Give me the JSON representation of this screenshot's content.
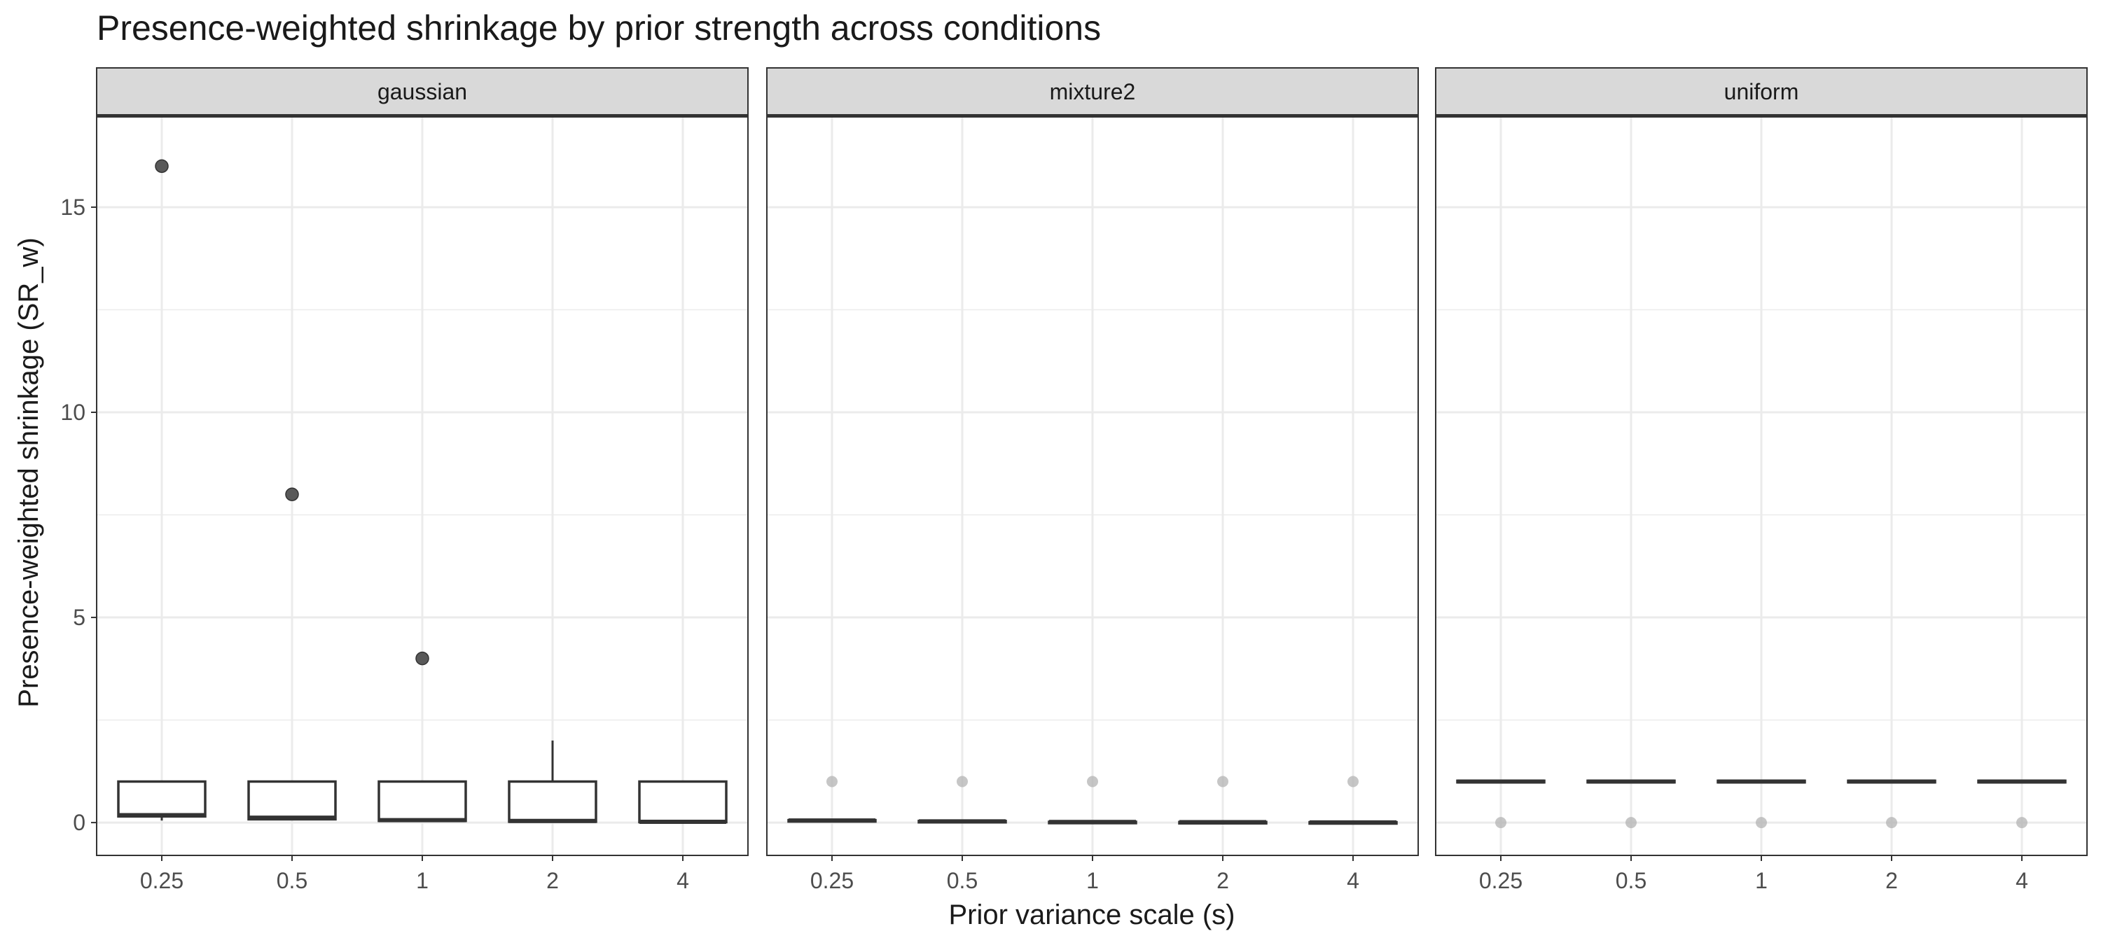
{
  "chart_data": {
    "type": "box",
    "title": "Presence-weighted shrinkage by prior strength across conditions",
    "xlabel": "Prior variance scale (s)",
    "ylabel": "Presence-weighted shrinkage (SR_w)",
    "ylim": [
      -0.8,
      17.2
    ],
    "yticks": [
      0,
      5,
      10,
      15
    ],
    "categories": [
      "0.25",
      "0.5",
      "1",
      "2",
      "4"
    ],
    "grid": true,
    "panels": [
      {
        "name": "gaussian",
        "boxes": [
          {
            "x": "0.25",
            "q1": 0.15,
            "median": 0.18,
            "q3": 1.0,
            "whisker_low": 0.05,
            "whisker_high": 1.0
          },
          {
            "x": "0.5",
            "q1": 0.08,
            "median": 0.12,
            "q3": 1.0,
            "whisker_low": 0.08,
            "whisker_high": 1.0
          },
          {
            "x": "1",
            "q1": 0.04,
            "median": 0.06,
            "q3": 1.0,
            "whisker_low": 0.04,
            "whisker_high": 1.0
          },
          {
            "x": "2",
            "q1": 0.02,
            "median": 0.04,
            "q3": 1.0,
            "whisker_low": 0.02,
            "whisker_high": 2.0
          },
          {
            "x": "4",
            "q1": 0.01,
            "median": 0.02,
            "q3": 1.0,
            "whisker_low": 0.01,
            "whisker_high": 1.0
          }
        ],
        "outliers": [
          {
            "x": "0.25",
            "y": 16
          },
          {
            "x": "0.5",
            "y": 8
          },
          {
            "x": "1",
            "y": 4
          }
        ],
        "jitter_points": []
      },
      {
        "name": "mixture2",
        "boxes": [
          {
            "x": "0.25",
            "q1": 0.04,
            "median": 0.05,
            "q3": 0.06,
            "whisker_low": 0.04,
            "whisker_high": 0.06
          },
          {
            "x": "0.5",
            "q1": 0.02,
            "median": 0.03,
            "q3": 0.04,
            "whisker_low": 0.02,
            "whisker_high": 0.04
          },
          {
            "x": "1",
            "q1": 0.01,
            "median": 0.015,
            "q3": 0.02,
            "whisker_low": 0.01,
            "whisker_high": 0.02
          },
          {
            "x": "2",
            "q1": 0.005,
            "median": 0.01,
            "q3": 0.015,
            "whisker_low": 0.005,
            "whisker_high": 0.015
          },
          {
            "x": "4",
            "q1": 0.0,
            "median": 0.005,
            "q3": 0.01,
            "whisker_low": 0.0,
            "whisker_high": 0.01
          }
        ],
        "outliers": [],
        "jitter_points": [
          {
            "x": "0.25",
            "y": 1
          },
          {
            "x": "0.5",
            "y": 1
          },
          {
            "x": "1",
            "y": 1
          },
          {
            "x": "2",
            "y": 1
          },
          {
            "x": "4",
            "y": 1
          }
        ]
      },
      {
        "name": "uniform",
        "boxes": [
          {
            "x": "0.25",
            "q1": 0.98,
            "median": 1.0,
            "q3": 1.02,
            "whisker_low": 0.98,
            "whisker_high": 1.02
          },
          {
            "x": "0.5",
            "q1": 0.98,
            "median": 1.0,
            "q3": 1.02,
            "whisker_low": 0.98,
            "whisker_high": 1.02
          },
          {
            "x": "1",
            "q1": 0.98,
            "median": 1.0,
            "q3": 1.02,
            "whisker_low": 0.98,
            "whisker_high": 1.02
          },
          {
            "x": "2",
            "q1": 0.98,
            "median": 1.0,
            "q3": 1.02,
            "whisker_low": 0.98,
            "whisker_high": 1.02
          },
          {
            "x": "4",
            "q1": 0.98,
            "median": 1.0,
            "q3": 1.02,
            "whisker_low": 0.98,
            "whisker_high": 1.02
          }
        ],
        "outliers": [],
        "jitter_points": [
          {
            "x": "0.25",
            "y": 0
          },
          {
            "x": "0.5",
            "y": 0
          },
          {
            "x": "1",
            "y": 0
          },
          {
            "x": "2",
            "y": 0
          },
          {
            "x": "4",
            "y": 0
          }
        ]
      }
    ],
    "colors": {
      "strip_fill": "#d9d9d9",
      "panel_border": "#333333",
      "grid_major": "#ebebeb",
      "box_stroke": "#333333",
      "outlier_fill": "#595959",
      "jitter_fill": "#b3b3b3",
      "text": "#1a1a1a",
      "tick_text": "#4d4d4d"
    }
  }
}
